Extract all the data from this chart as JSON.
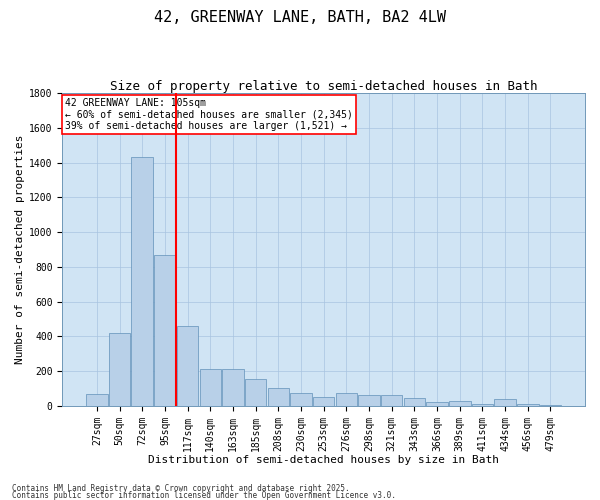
{
  "title": "42, GREENWAY LANE, BATH, BA2 4LW",
  "subtitle": "Size of property relative to semi-detached houses in Bath",
  "xlabel": "Distribution of semi-detached houses by size in Bath",
  "ylabel": "Number of semi-detached properties",
  "footnote1": "Contains HM Land Registry data © Crown copyright and database right 2025.",
  "footnote2": "Contains public sector information licensed under the Open Government Licence v3.0.",
  "annotation_line1": "42 GREENWAY LANE: 105sqm",
  "annotation_line2": "← 60% of semi-detached houses are smaller (2,345)",
  "annotation_line3": "39% of semi-detached houses are larger (1,521) →",
  "bar_categories": [
    "27sqm",
    "50sqm",
    "72sqm",
    "95sqm",
    "117sqm",
    "140sqm",
    "163sqm",
    "185sqm",
    "208sqm",
    "230sqm",
    "253sqm",
    "276sqm",
    "298sqm",
    "321sqm",
    "343sqm",
    "366sqm",
    "389sqm",
    "411sqm",
    "434sqm",
    "456sqm",
    "479sqm"
  ],
  "bar_values": [
    70,
    420,
    1430,
    870,
    460,
    210,
    210,
    155,
    100,
    75,
    50,
    75,
    65,
    60,
    45,
    25,
    30,
    10,
    40,
    10,
    5
  ],
  "bar_color": "#b8d0e8",
  "bar_edge_color": "#6090b8",
  "vline_color": "red",
  "vline_x": 3.5,
  "ylim": [
    0,
    1800
  ],
  "yticks": [
    0,
    200,
    400,
    600,
    800,
    1000,
    1200,
    1400,
    1600,
    1800
  ],
  "grid_color": "#a8c4e0",
  "bg_color": "#d0e4f4",
  "title_fontsize": 11,
  "subtitle_fontsize": 9,
  "axis_label_fontsize": 8,
  "tick_fontsize": 7,
  "annotation_fontsize": 7,
  "footnote_fontsize": 5.5
}
